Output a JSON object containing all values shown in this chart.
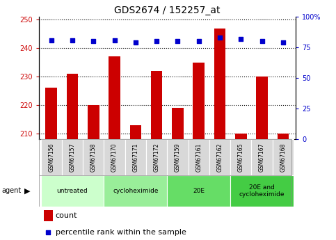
{
  "title": "GDS2674 / 152257_at",
  "samples": [
    "GSM67156",
    "GSM67157",
    "GSM67158",
    "GSM67170",
    "GSM67171",
    "GSM67172",
    "GSM67159",
    "GSM67161",
    "GSM67162",
    "GSM67165",
    "GSM67167",
    "GSM67168"
  ],
  "counts": [
    226,
    231,
    220,
    237,
    213,
    232,
    219,
    235,
    247,
    210,
    230,
    210
  ],
  "percentiles": [
    81,
    81,
    80,
    81,
    79,
    80,
    80,
    80,
    83,
    82,
    80,
    79
  ],
  "ylim_left": [
    208,
    251
  ],
  "ylim_right": [
    0,
    100
  ],
  "yticks_left": [
    210,
    220,
    230,
    240,
    250
  ],
  "yticks_right": [
    0,
    25,
    50,
    75,
    100
  ],
  "groups": [
    {
      "label": "untreated",
      "start": 0,
      "end": 3,
      "color": "#ccffcc"
    },
    {
      "label": "cycloheximide",
      "start": 3,
      "end": 6,
      "color": "#99ee99"
    },
    {
      "label": "20E",
      "start": 6,
      "end": 9,
      "color": "#66dd66"
    },
    {
      "label": "20E and\ncycloheximide",
      "start": 9,
      "end": 12,
      "color": "#44cc44"
    }
  ],
  "bar_color": "#cc0000",
  "dot_color": "#0000cc",
  "bar_width": 0.55,
  "title_fontsize": 10,
  "tick_fontsize": 7,
  "label_fontsize": 8
}
